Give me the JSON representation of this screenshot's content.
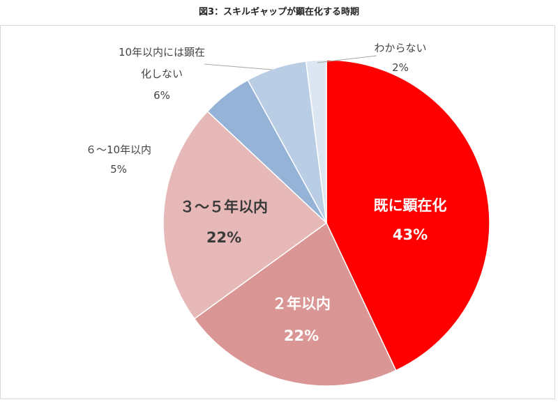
{
  "figure_title": "図3：スキルギャップが顕在化する時期",
  "chart_data": {
    "type": "pie",
    "title": "",
    "slices": [
      {
        "label": "既に顕在化",
        "value": 43,
        "value_label": "43%",
        "color": "#ff0000",
        "label_color": "#ffffff"
      },
      {
        "label": "２年以内",
        "value": 22,
        "value_label": "22%",
        "color": "#da9694",
        "label_color": "#ffffff"
      },
      {
        "label": "３～５年以内",
        "value": 22,
        "value_label": "22%",
        "color": "#e6b9b8",
        "label_color": "#3a3a3a"
      },
      {
        "label": "６～10年以内",
        "value": 5,
        "value_label": "5%",
        "color": "#95b3d7",
        "label_color": "#444444"
      },
      {
        "label_lines": [
          "10年以内には顕在",
          "化しない"
        ],
        "value": 6,
        "value_label": "6%",
        "color": "#b9cde5",
        "label_color": "#444444"
      },
      {
        "label": "わからない",
        "value": 2,
        "value_label": "2%",
        "color": "#dce6f2",
        "label_color": "#444444"
      }
    ],
    "start_angle_deg": 0,
    "direction": "clockwise",
    "legend": "none"
  }
}
